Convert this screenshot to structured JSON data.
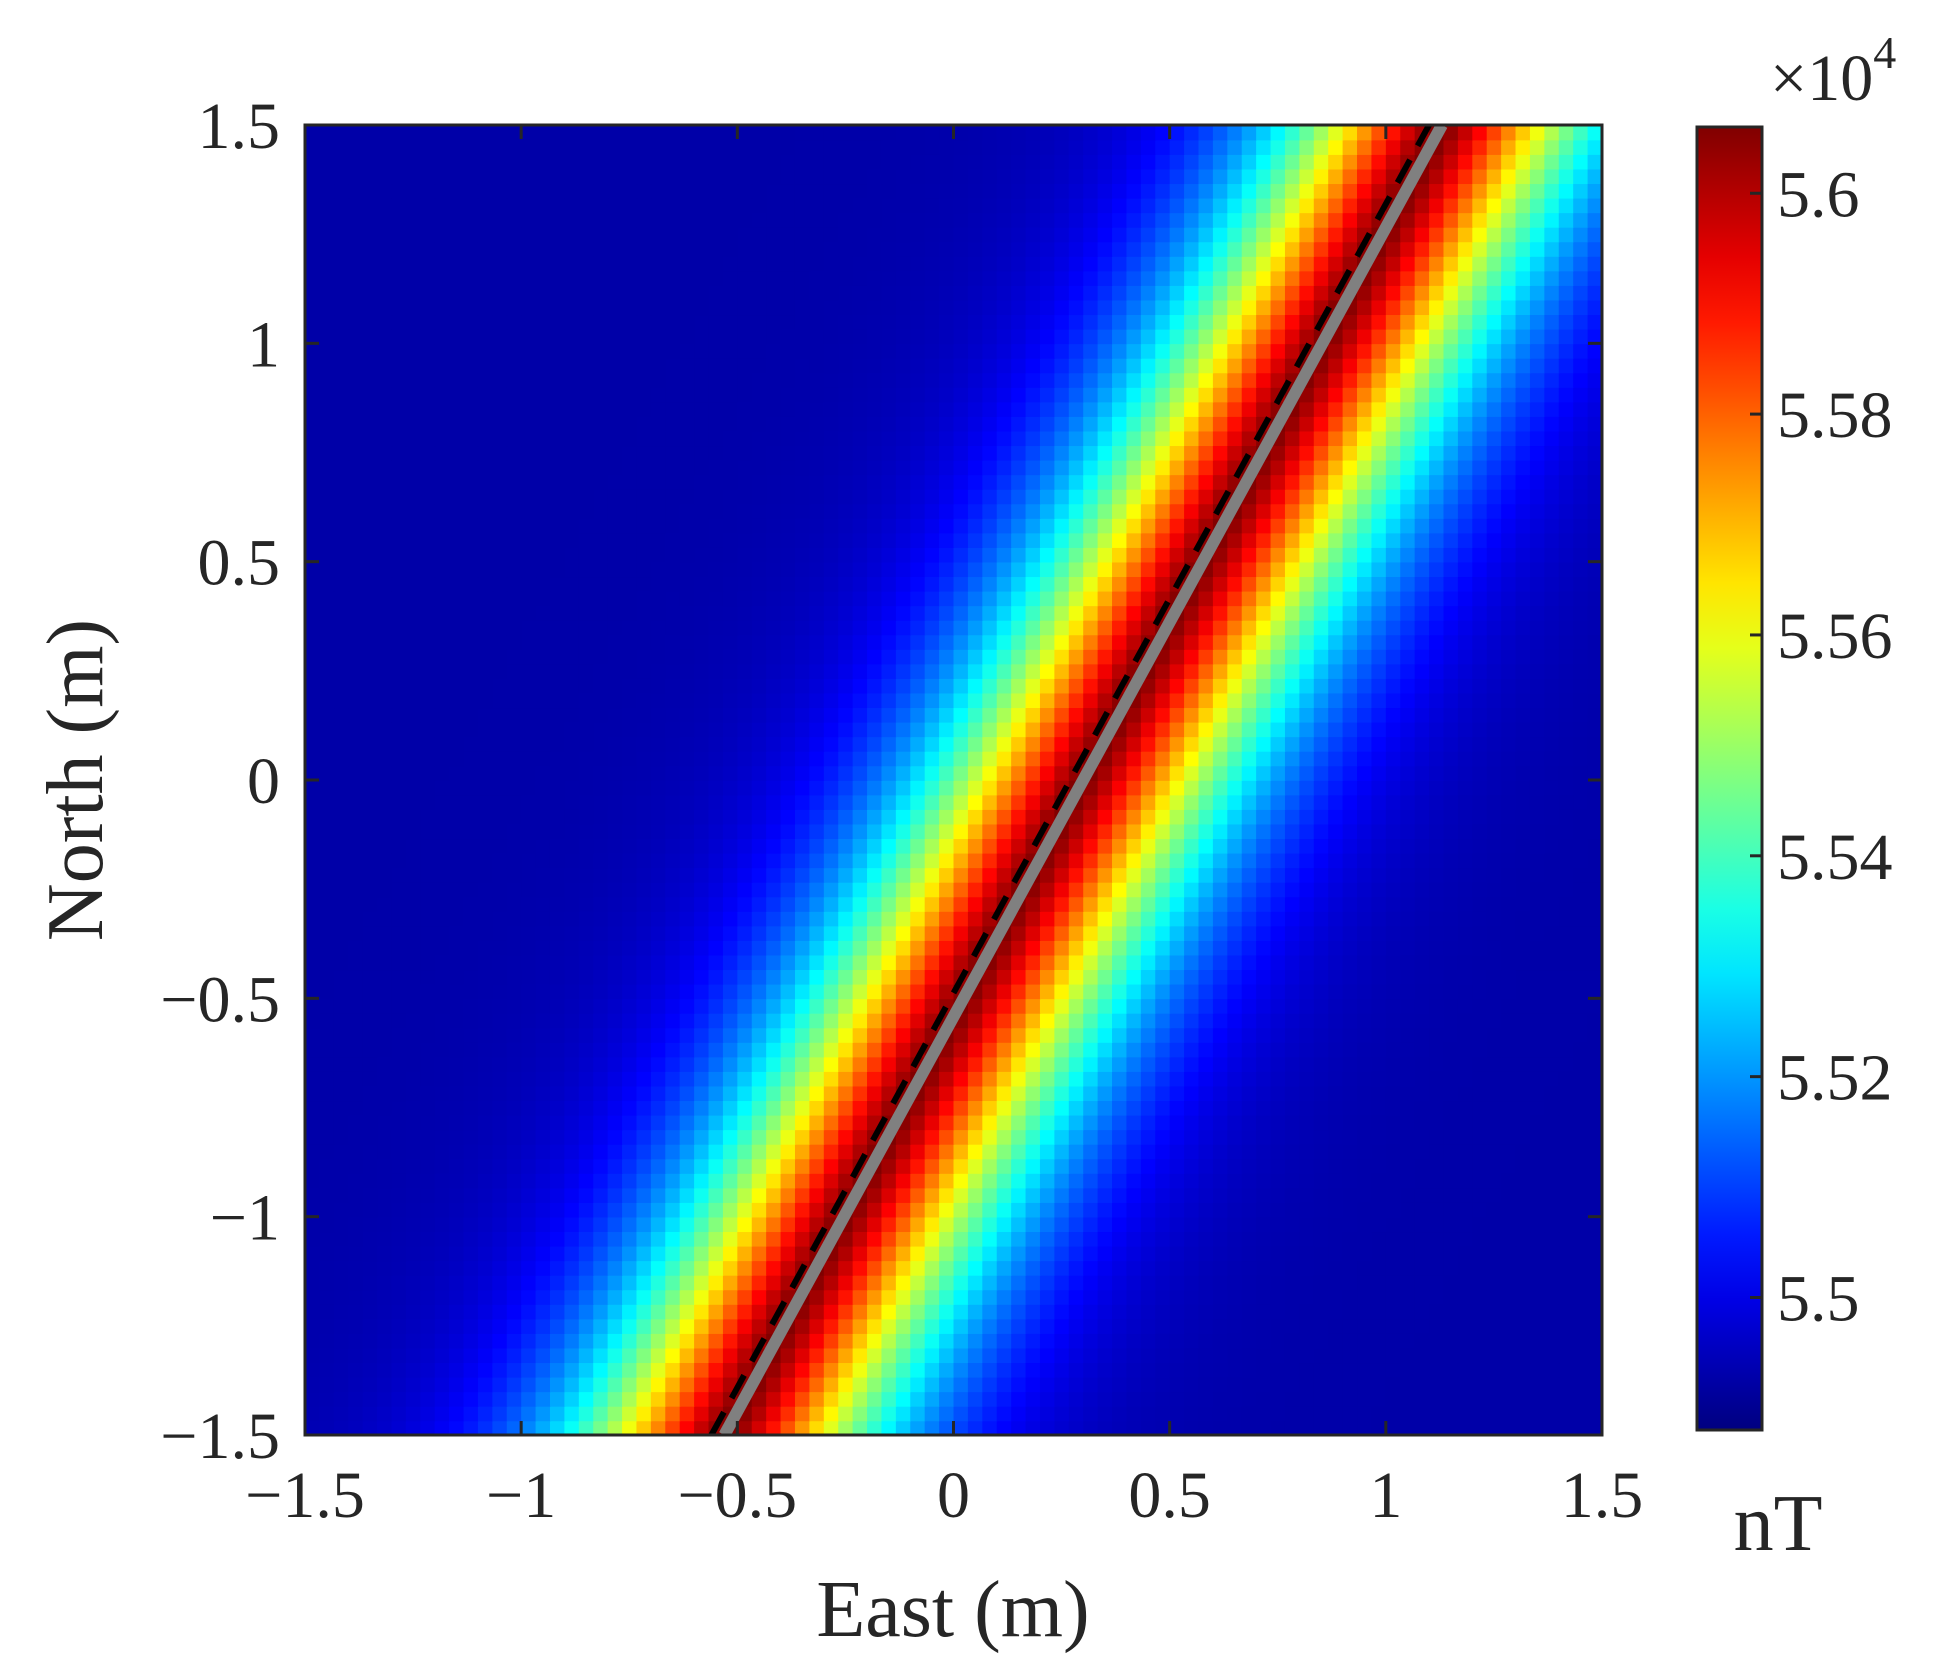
{
  "chart_data": {
    "type": "heatmap",
    "title": "",
    "xlabel": "East (m)",
    "ylabel": "North (m)",
    "xlim": [
      -1.5,
      1.5
    ],
    "ylim": [
      -1.5,
      1.5
    ],
    "xticks": [
      -1.5,
      -1,
      -0.5,
      0,
      0.5,
      1,
      1.5
    ],
    "xtick_labels": [
      "−1.5",
      "−1",
      "−0.5",
      "0",
      "0.5",
      "1",
      "1.5"
    ],
    "yticks": [
      -1.5,
      -1,
      -0.5,
      0,
      0.5,
      1,
      1.5
    ],
    "ytick_labels": [
      "−1.5",
      "−1",
      "−0.5",
      "0",
      "0.5",
      "1",
      "1.5"
    ],
    "colormap": "jet",
    "colorbar": {
      "range": [
        5.488,
        5.606
      ],
      "ticks": [
        5.5,
        5.52,
        5.54,
        5.56,
        5.58,
        5.6
      ],
      "tick_labels": [
        "5.5",
        "5.52",
        "5.54",
        "5.56",
        "5.58",
        "5.6"
      ],
      "exponent_prefix": "×10",
      "exponent": "4",
      "unit": "nT"
    },
    "field": {
      "peak_line": {
        "x_at_ymin": -0.53,
        "x_at_ymax": 1.13
      },
      "description_values": {
        "min": 5.488,
        "max": 5.606
      }
    },
    "lines": [
      {
        "style": "solid",
        "color": "#808080",
        "from": [
          -0.53,
          -1.5
        ],
        "to": [
          1.13,
          1.5
        ]
      },
      {
        "style": "dashed",
        "color": "#000000",
        "from": [
          -0.56,
          -1.5
        ],
        "to": [
          1.1,
          1.5
        ]
      }
    ],
    "grid": false
  }
}
